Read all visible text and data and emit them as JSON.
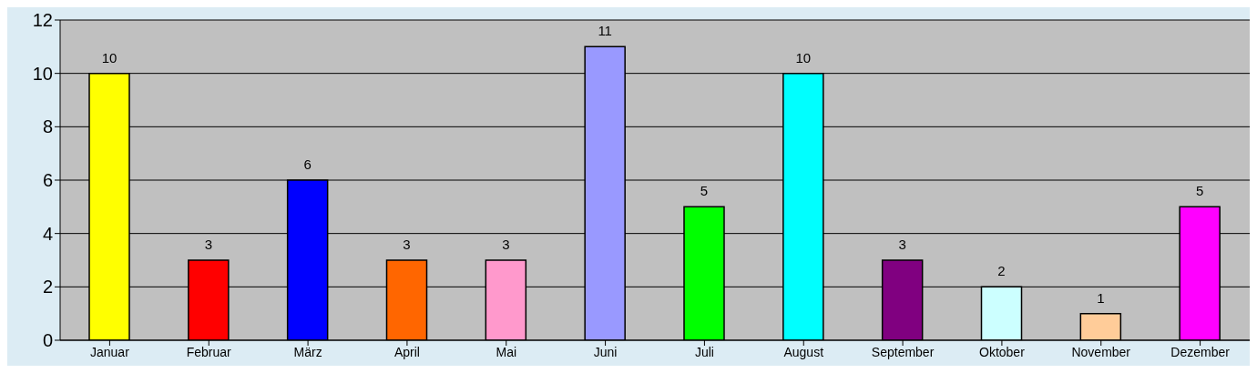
{
  "chart_data": {
    "type": "bar",
    "categories": [
      "Januar",
      "Februar",
      "März",
      "April",
      "Mai",
      "Juni",
      "Juli",
      "August",
      "September",
      "Oktober",
      "November",
      "Dezember"
    ],
    "values": [
      10,
      3,
      6,
      3,
      3,
      11,
      5,
      10,
      3,
      2,
      1,
      5
    ],
    "colors": [
      "#ffff00",
      "#ff0000",
      "#0000ff",
      "#ff6600",
      "#ff99cc",
      "#9999ff",
      "#00ff00",
      "#00ffff",
      "#800080",
      "#ccffff",
      "#ffcc99",
      "#ff00ff"
    ],
    "ylim": [
      0,
      12
    ],
    "yticks": [
      0,
      2,
      4,
      6,
      8,
      10,
      12
    ],
    "grid": "y",
    "data_labels": true,
    "legend": false
  }
}
